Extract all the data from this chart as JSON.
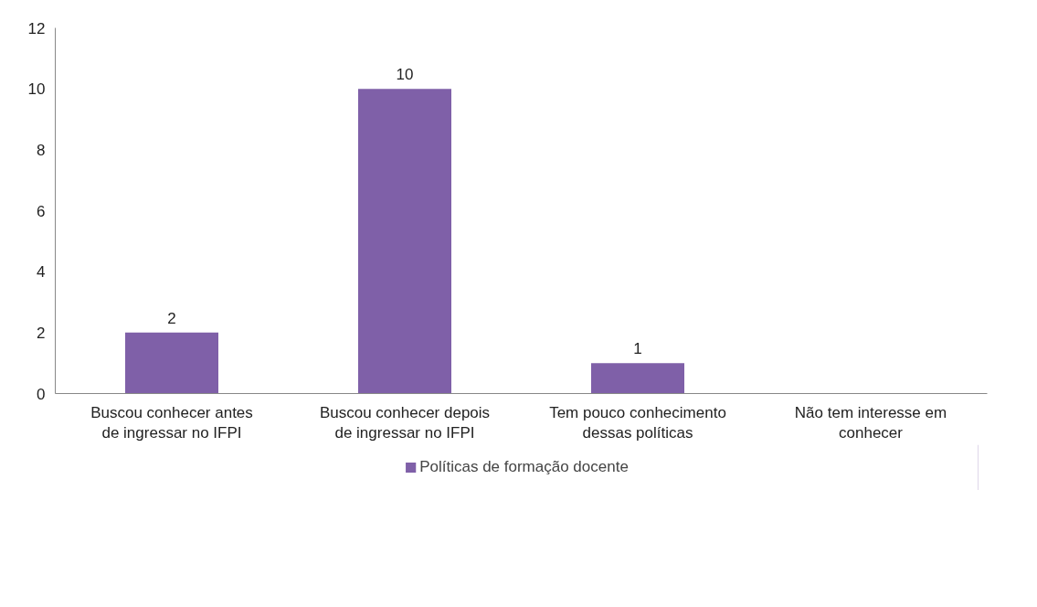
{
  "chart_data": {
    "type": "bar",
    "categories": [
      "Buscou conhecer antes de ingressar no IFPI",
      "Buscou conhecer depois de ingressar no IFPI",
      "Tem pouco conhecimento dessas políticas",
      "Não tem interesse em conhecer"
    ],
    "series": [
      {
        "name": "Políticas de formação docente",
        "color": "#7f60a8",
        "values": [
          2,
          10,
          1,
          0
        ],
        "value_labels": [
          "2",
          "10",
          "1",
          null
        ]
      }
    ],
    "ylim": [
      0,
      12
    ],
    "yticks": [
      0,
      2,
      4,
      6,
      8,
      10,
      12
    ],
    "grid": false,
    "legend": "bottom"
  }
}
